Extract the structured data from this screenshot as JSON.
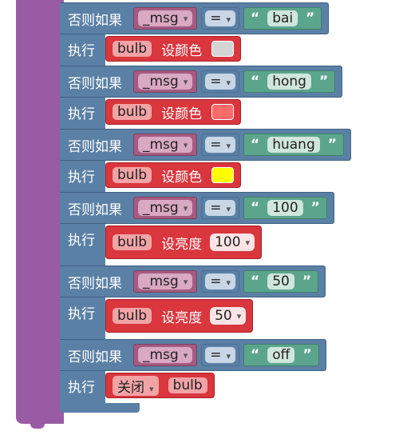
{
  "branches": [
    {
      "keyword": "否则如果",
      "variable": "_msg",
      "operator": "=",
      "value": "bai",
      "do_label": "执行",
      "action": {
        "target": "bulb",
        "verb": "设颜色",
        "color": "#d4d4d4"
      }
    },
    {
      "keyword": "否则如果",
      "variable": "_msg",
      "operator": "=",
      "value": "hong",
      "do_label": "执行",
      "action": {
        "target": "bulb",
        "verb": "设颜色",
        "color": "#ff6a6a"
      }
    },
    {
      "keyword": "否则如果",
      "variable": "_msg",
      "operator": "=",
      "value": "huang",
      "do_label": "执行",
      "action": {
        "target": "bulb",
        "verb": "设颜色",
        "color": "#ffff00"
      }
    },
    {
      "keyword": "否则如果",
      "variable": "_msg",
      "operator": "=",
      "value": "100",
      "do_label": "执行",
      "action": {
        "target": "bulb",
        "verb": "设亮度",
        "level": "100"
      }
    },
    {
      "keyword": "否则如果",
      "variable": "_msg",
      "operator": "=",
      "value": "50",
      "do_label": "执行",
      "action": {
        "target": "bulb",
        "verb": "设亮度",
        "level": "50"
      }
    },
    {
      "keyword": "否则如果",
      "variable": "_msg",
      "operator": "=",
      "value": "off",
      "do_label": "执行",
      "action": {
        "mode": "关闭",
        "target": "bulb"
      }
    }
  ]
}
